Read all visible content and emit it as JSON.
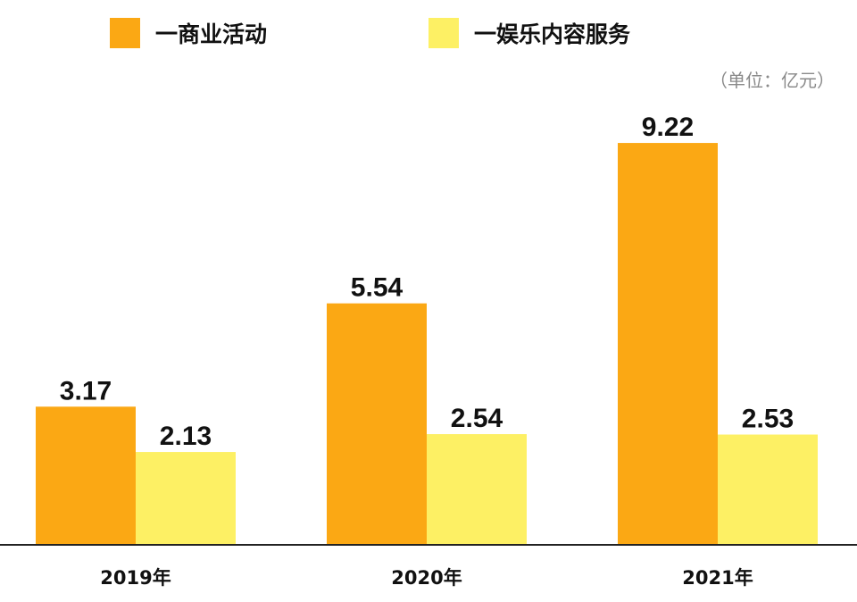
{
  "chart_data": {
    "type": "bar",
    "categories": [
      "2019年",
      "2020年",
      "2021年"
    ],
    "series": [
      {
        "name": "一商业活动",
        "values": [
          3.17,
          5.54,
          9.22
        ],
        "color": "#FBA814"
      },
      {
        "name": "一娱乐内容服务",
        "values": [
          2.13,
          2.54,
          2.53
        ],
        "color": "#FDF064"
      }
    ],
    "unit_label": "（单位：亿元）",
    "ylim": [
      0,
      10
    ],
    "grid": false,
    "legend_position": "top",
    "axis_color": "#222222"
  }
}
